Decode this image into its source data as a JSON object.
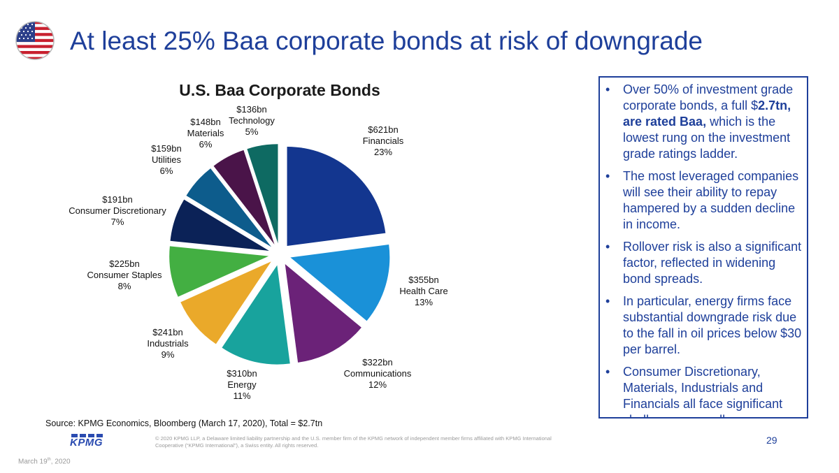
{
  "header": {
    "title": "At least 25% Baa corporate bonds at risk of downgrade",
    "flag_icon": "us-flag-icon"
  },
  "chart_data": {
    "type": "pie",
    "title": "U.S. Baa Corporate Bonds",
    "start": "12 o'clock, clockwise",
    "slices": [
      {
        "name": "Financials",
        "amount": "$621bn",
        "value": 621,
        "percent": "23%",
        "color": "#13368f"
      },
      {
        "name": "Health Care",
        "amount": "$355bn",
        "value": 355,
        "percent": "13%",
        "color": "#1a91d8"
      },
      {
        "name": "Communications",
        "amount": "$322bn",
        "value": 322,
        "percent": "12%",
        "color": "#6b2278"
      },
      {
        "name": "Energy",
        "amount": "$310bn",
        "value": 310,
        "percent": "11%",
        "color": "#18a39d"
      },
      {
        "name": "Industrials",
        "amount": "$241bn",
        "value": 241,
        "percent": "9%",
        "color": "#eaa92a"
      },
      {
        "name": "Consumer Staples",
        "amount": "$225bn",
        "value": 225,
        "percent": "8%",
        "color": "#43af42"
      },
      {
        "name": "Consumer Discretionary",
        "amount": "$191bn",
        "value": 191,
        "percent": "7%",
        "color": "#0b2257"
      },
      {
        "name": "Utilities",
        "amount": "$159bn",
        "value": 159,
        "percent": "6%",
        "color": "#0d5c8c"
      },
      {
        "name": "Materials",
        "amount": "$148bn",
        "value": 148,
        "percent": "6%",
        "color": "#4a1449"
      },
      {
        "name": "Technology",
        "amount": "$136bn",
        "value": 136,
        "percent": "5%",
        "color": "#0e6a62"
      }
    ]
  },
  "bullets": [
    {
      "before": "Over 50% of investment grade corporate bonds, a full $",
      "bold": "2.7tn, are rated Baa,",
      "after": " which is the lowest rung on the investment grade ratings ladder."
    },
    {
      "before": "The most leveraged companies will see their ability to repay hampered by a sudden decline in income.",
      "bold": "",
      "after": ""
    },
    {
      "before": "Rollover risk is also a significant factor, reflected in widening bond spreads.",
      "bold": "",
      "after": ""
    },
    {
      "before": "In particular, energy firms face substantial downgrade risk due to the fall in oil prices below $30 per barrel.",
      "bold": "",
      "after": ""
    },
    {
      "before": "Consumer Discretionary, Materials, Industrials and Financials all face significant challenges as well.",
      "bold": "",
      "after": ""
    }
  ],
  "bullet_glyph": "•",
  "footer": {
    "source": "Source: KPMG Economics, Bloomberg (March 17, 2020), Total = $2.7tn",
    "logo_text": "KPMG",
    "copyright": "© 2020 KPMG LLP, a Delaware limited liability partnership and the U.S. member firm of the KPMG network of independent member firms affiliated with KPMG International Cooperative (“KPMG International”), a Swiss entity. All rights reserved.",
    "page_number": "29",
    "date_day": "March 19",
    "date_suffix": "th",
    "date_year": ", 2020"
  }
}
